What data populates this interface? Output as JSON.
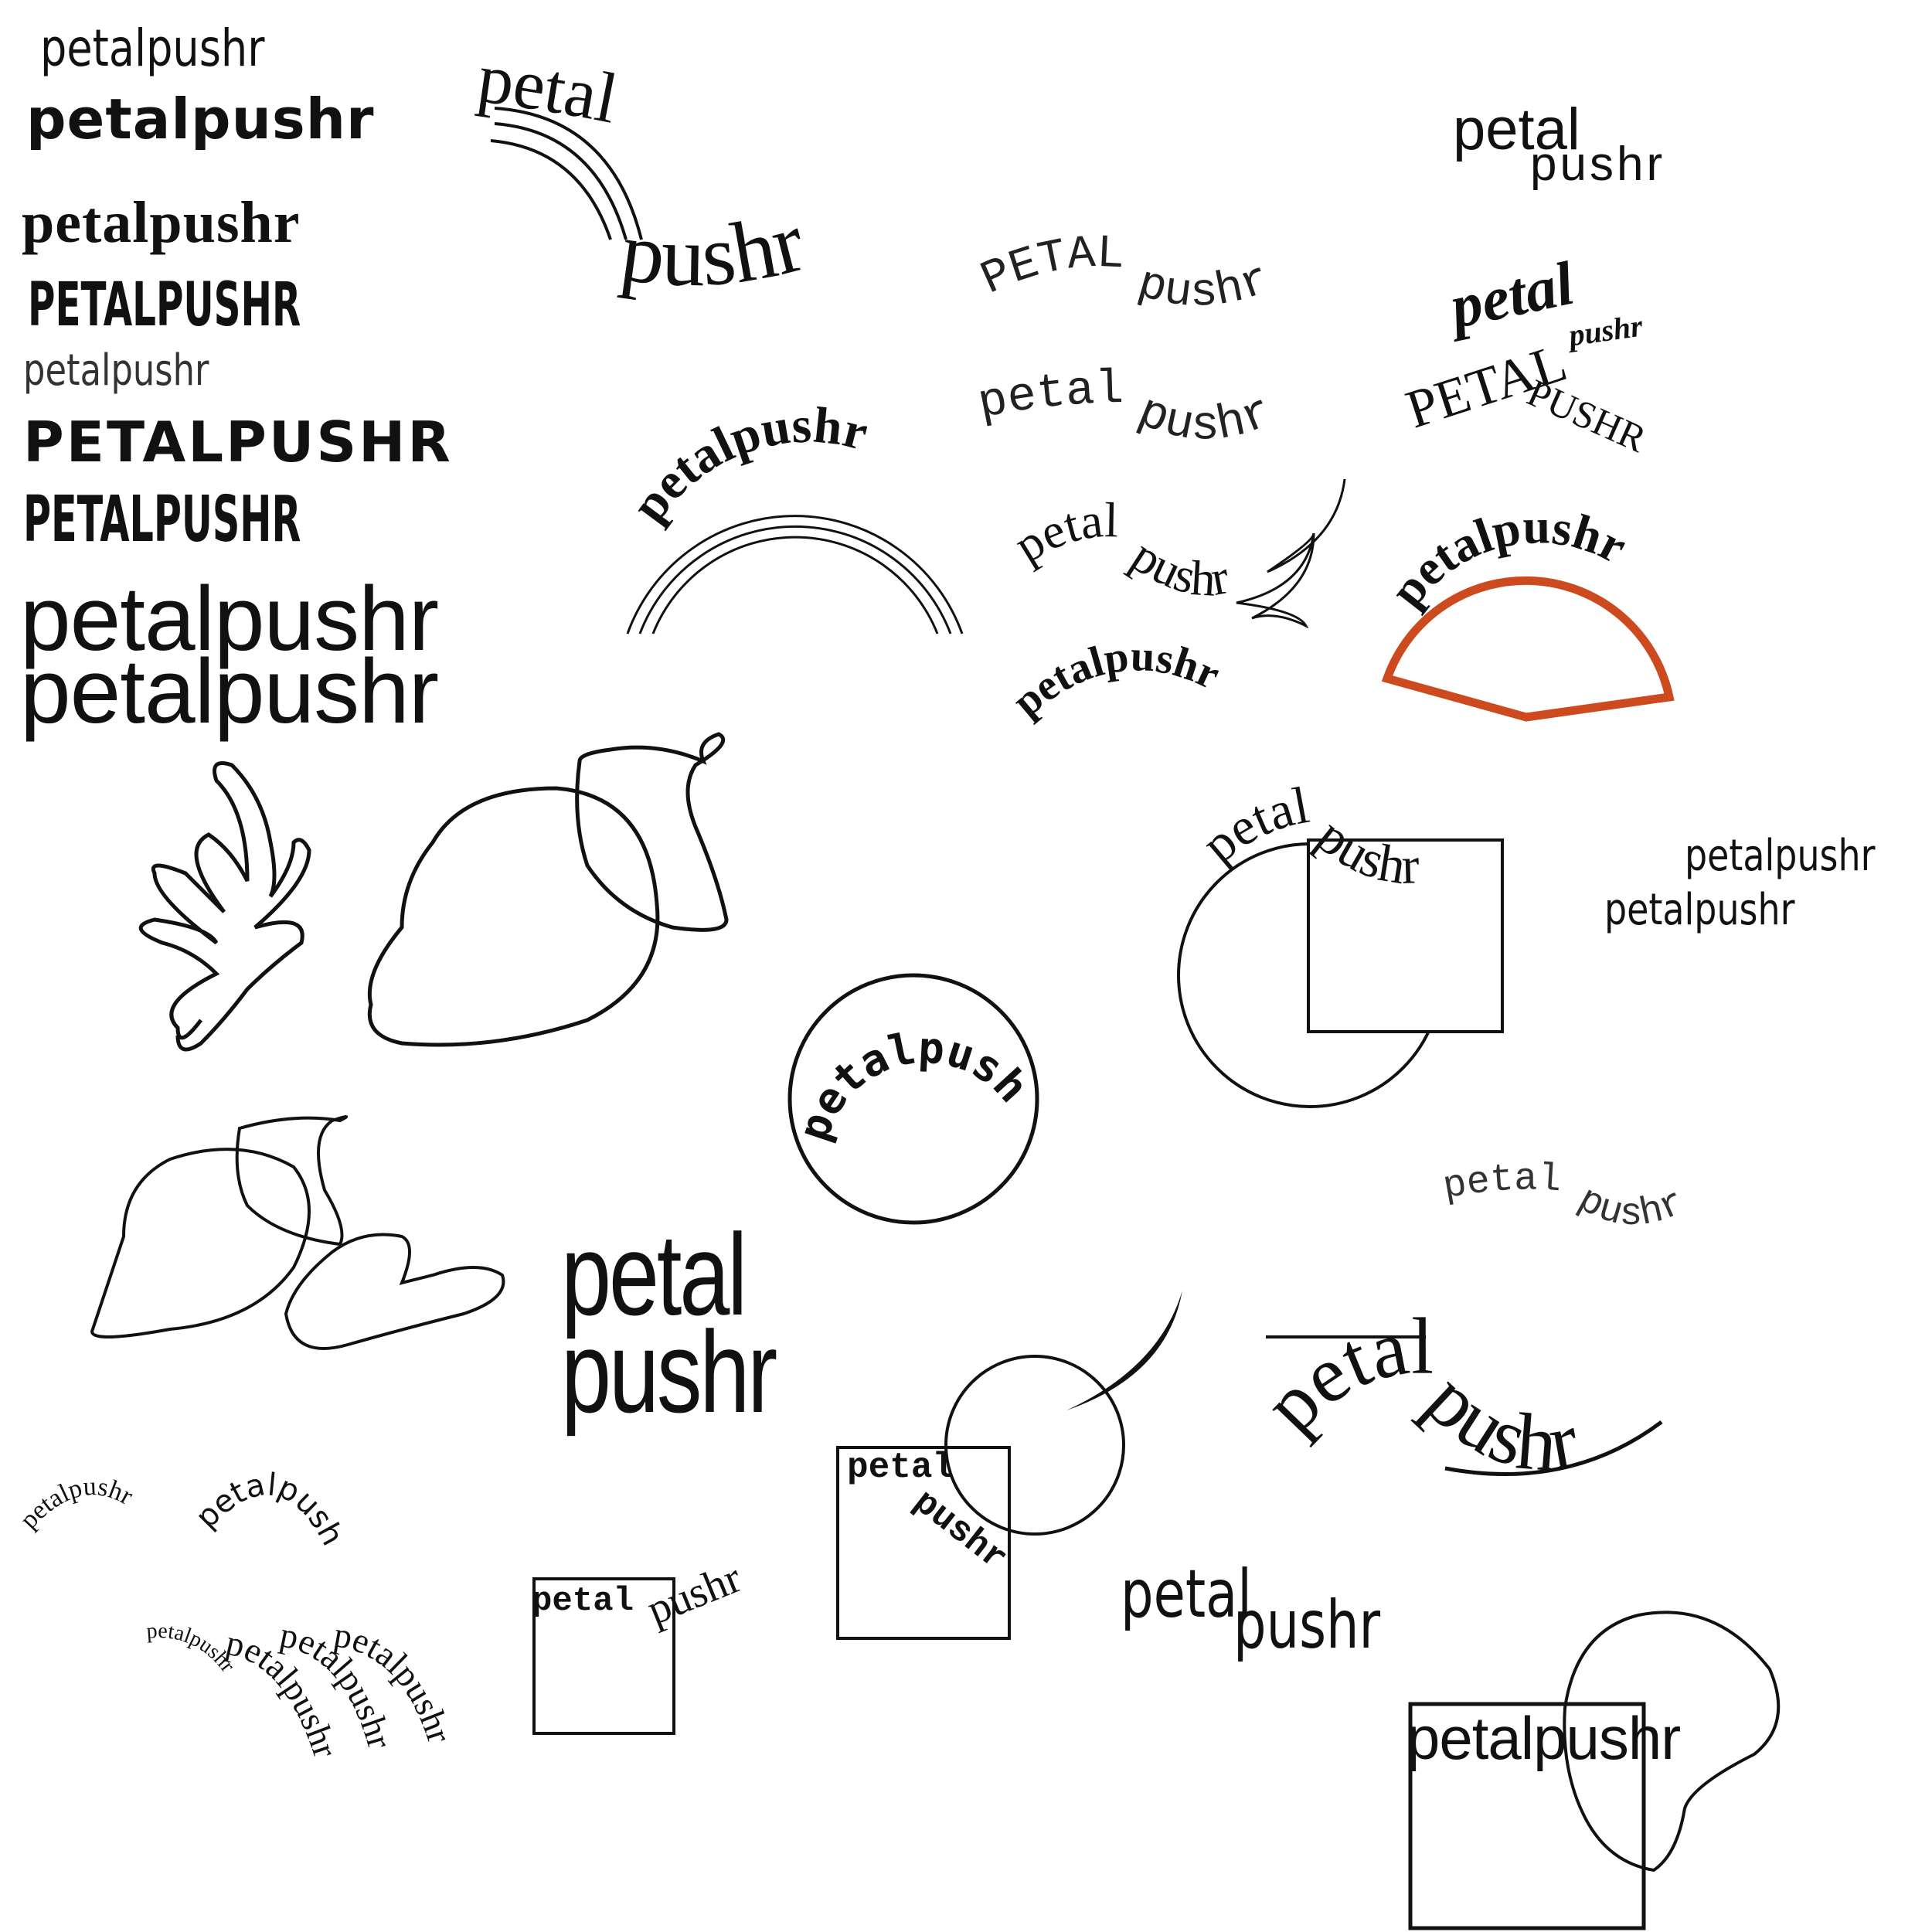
{
  "brand": {
    "name_lower": "petalpushr",
    "name_upper": "PETALPUSHR",
    "part1": "petal",
    "part2": "pushr",
    "part1_upper": "PETAL",
    "part1_caps_small": "PETAL",
    "part2_caps_small": "PUSHR"
  },
  "colors": {
    "ink": "#111111",
    "accent": "#cc4a1e"
  }
}
